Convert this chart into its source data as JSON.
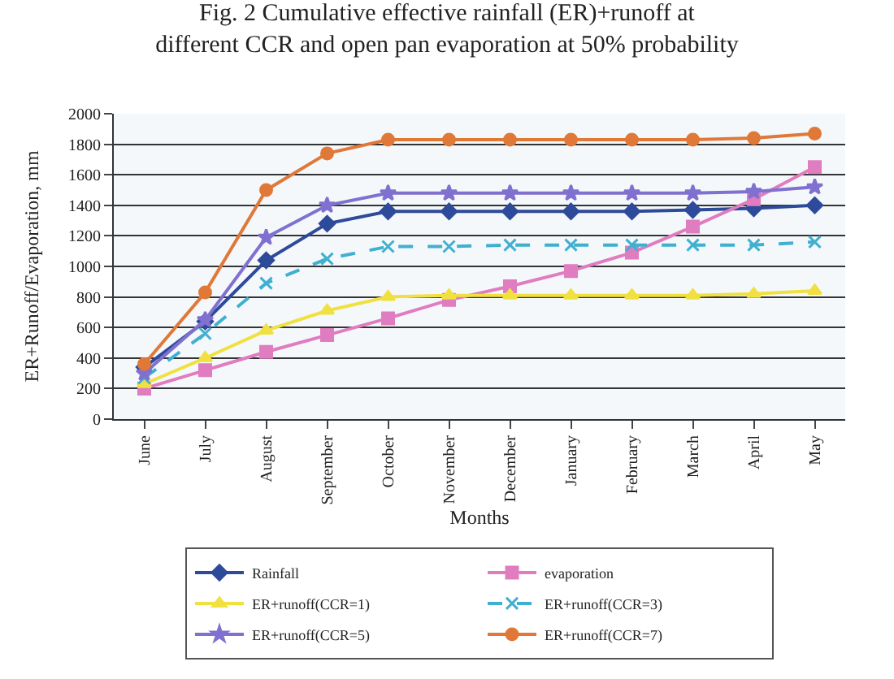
{
  "chart_data": {
    "type": "line",
    "title": "Fig. 2 Cumulative effective rainfall (ER)+runoff at\ndifferent CCR and open pan evaporation at 50% probability",
    "xlabel": "Months",
    "ylabel": "ER+Runoff/Evaporation, mm",
    "categories": [
      "June",
      "July",
      "August",
      "September",
      "October",
      "November",
      "December",
      "January",
      "February",
      "March",
      "April",
      "May"
    ],
    "ylim": [
      0,
      2000
    ],
    "yticks": [
      0,
      200,
      400,
      600,
      800,
      1000,
      1200,
      1400,
      1600,
      1800,
      2000
    ],
    "grid": "y",
    "legend": "bottom",
    "series": [
      {
        "name": "Rainfall",
        "color": "#2e4a9a",
        "marker": "diamond",
        "line_style": "solid",
        "values": [
          340,
          640,
          1040,
          1280,
          1360,
          1360,
          1360,
          1360,
          1360,
          1370,
          1380,
          1400
        ]
      },
      {
        "name": "evaporation",
        "color": "#e07cc0",
        "marker": "square",
        "line_style": "solid",
        "values": [
          200,
          320,
          440,
          550,
          660,
          780,
          870,
          970,
          1090,
          1260,
          1440,
          1650
        ]
      },
      {
        "name": "ER+runoff(CCR=1)",
        "color": "#f0e040",
        "marker": "triangle",
        "line_style": "solid",
        "values": [
          230,
          400,
          580,
          710,
          800,
          810,
          810,
          810,
          810,
          810,
          820,
          840
        ]
      },
      {
        "name": "ER+runoff(CCR=3)",
        "color": "#40b0d0",
        "marker": "cross",
        "line_style": "dashed",
        "values": [
          270,
          560,
          890,
          1050,
          1130,
          1130,
          1140,
          1140,
          1140,
          1140,
          1140,
          1160
        ]
      },
      {
        "name": "ER+runoff(CCR=5)",
        "color": "#8070d0",
        "marker": "star",
        "line_style": "solid",
        "values": [
          300,
          650,
          1190,
          1400,
          1480,
          1480,
          1480,
          1480,
          1480,
          1480,
          1490,
          1520
        ]
      },
      {
        "name": "ER+runoff(CCR=7)",
        "color": "#e07838",
        "marker": "circle",
        "line_style": "solid",
        "values": [
          360,
          830,
          1500,
          1740,
          1830,
          1830,
          1830,
          1830,
          1830,
          1830,
          1840,
          1870
        ]
      }
    ]
  }
}
